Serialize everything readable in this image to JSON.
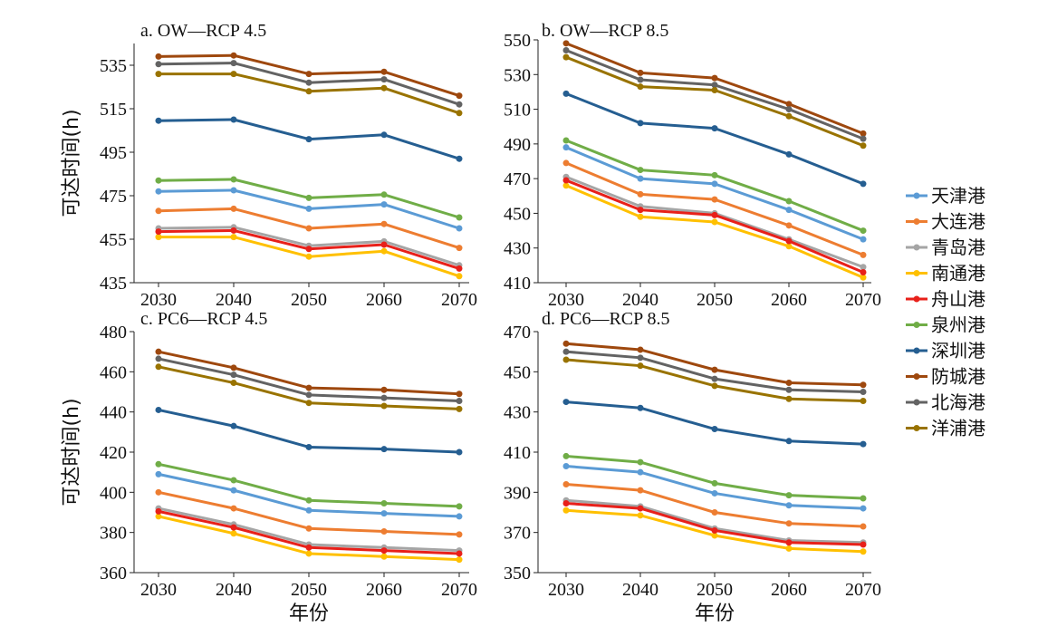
{
  "series_style": [
    {
      "name": "天津港",
      "color": "#5b9bd5"
    },
    {
      "name": "大连港",
      "color": "#ed7d31"
    },
    {
      "name": "青岛港",
      "color": "#a5a5a5"
    },
    {
      "name": "南通港",
      "color": "#ffc000"
    },
    {
      "name": "舟山港",
      "color": "#e8201a"
    },
    {
      "name": "泉州港",
      "color": "#70ad47"
    },
    {
      "name": "深圳港",
      "color": "#255e91"
    },
    {
      "name": "防城港",
      "color": "#9e480e"
    },
    {
      "name": "北海港",
      "color": "#636363"
    },
    {
      "name": "洋浦港",
      "color": "#997300"
    }
  ],
  "chart_data": [
    {
      "type": "line",
      "title": "a. OW—RCP 4.5",
      "xlabel": "",
      "ylabel": "可达时间(h)",
      "categories": [
        "2030",
        "2040",
        "2050",
        "2060",
        "2070"
      ],
      "ylim": [
        435,
        545
      ],
      "yticks": [
        435,
        455,
        475,
        495,
        515,
        535
      ],
      "series": [
        {
          "name": "天津港",
          "values": [
            477,
            477.5,
            469,
            471,
            460
          ]
        },
        {
          "name": "大连港",
          "values": [
            468,
            469,
            460,
            462,
            451
          ]
        },
        {
          "name": "青岛港",
          "values": [
            460,
            460.5,
            452,
            454,
            443
          ]
        },
        {
          "name": "南通港",
          "values": [
            456,
            456,
            447,
            449.5,
            438
          ]
        },
        {
          "name": "舟山港",
          "values": [
            458.5,
            459,
            450.5,
            452.5,
            441.5
          ]
        },
        {
          "name": "泉州港",
          "values": [
            482,
            482.5,
            474,
            475.5,
            465
          ]
        },
        {
          "name": "深圳港",
          "values": [
            509.5,
            510,
            501,
            503,
            492
          ]
        },
        {
          "name": "防城港",
          "values": [
            539,
            539.5,
            531,
            532,
            521
          ]
        },
        {
          "name": "北海港",
          "values": [
            535.5,
            536,
            527,
            528.5,
            517
          ]
        },
        {
          "name": "洋浦港",
          "values": [
            531,
            531,
            523,
            524.5,
            513
          ]
        }
      ]
    },
    {
      "type": "line",
      "title": "b. OW—RCP 8.5",
      "xlabel": "",
      "ylabel": "",
      "categories": [
        "2030",
        "2040",
        "2050",
        "2060",
        "2070"
      ],
      "ylim": [
        410,
        550
      ],
      "yticks": [
        410,
        430,
        450,
        470,
        490,
        510,
        530,
        550
      ],
      "series": [
        {
          "name": "天津港",
          "values": [
            488,
            470,
            467,
            452,
            435
          ]
        },
        {
          "name": "大连港",
          "values": [
            479,
            461,
            458,
            443,
            426
          ]
        },
        {
          "name": "青岛港",
          "values": [
            471,
            454,
            450,
            435,
            419
          ]
        },
        {
          "name": "南通港",
          "values": [
            466,
            448,
            445,
            431,
            413
          ]
        },
        {
          "name": "舟山港",
          "values": [
            469,
            452,
            449,
            434,
            416
          ]
        },
        {
          "name": "泉州港",
          "values": [
            492,
            475,
            472,
            457,
            440
          ]
        },
        {
          "name": "深圳港",
          "values": [
            519,
            502,
            499,
            484,
            467
          ]
        },
        {
          "name": "防城港",
          "values": [
            548,
            531,
            528,
            513,
            496
          ]
        },
        {
          "name": "北海港",
          "values": [
            544,
            527,
            524,
            510,
            493
          ]
        },
        {
          "name": "洋浦港",
          "values": [
            540,
            523,
            521,
            506,
            489
          ]
        }
      ]
    },
    {
      "type": "line",
      "title": "c. PC6—RCP 4.5",
      "xlabel": "年份",
      "ylabel": "可达时间(h)",
      "categories": [
        "2030",
        "2040",
        "2050",
        "2060",
        "2070"
      ],
      "ylim": [
        360,
        480
      ],
      "yticks": [
        360,
        380,
        400,
        420,
        440,
        460,
        480
      ],
      "series": [
        {
          "name": "天津港",
          "values": [
            409,
            401,
            391,
            389.5,
            388
          ]
        },
        {
          "name": "大连港",
          "values": [
            400,
            392,
            382,
            380.5,
            379
          ]
        },
        {
          "name": "青岛港",
          "values": [
            392,
            384,
            374,
            372.5,
            371
          ]
        },
        {
          "name": "南通港",
          "values": [
            388,
            379.5,
            369.5,
            368,
            366.5
          ]
        },
        {
          "name": "舟山港",
          "values": [
            390.5,
            382.5,
            372.5,
            371,
            369.5
          ]
        },
        {
          "name": "泉州港",
          "values": [
            414,
            406,
            396,
            394.5,
            393
          ]
        },
        {
          "name": "深圳港",
          "values": [
            441,
            433,
            422.5,
            421.5,
            420
          ]
        },
        {
          "name": "防城港",
          "values": [
            470,
            462,
            452,
            451,
            449
          ]
        },
        {
          "name": "北海港",
          "values": [
            466.5,
            458.5,
            448.5,
            447,
            445.5
          ]
        },
        {
          "name": "洋浦港",
          "values": [
            462.5,
            454.5,
            444.5,
            443,
            441.5
          ]
        }
      ]
    },
    {
      "type": "line",
      "title": "d. PC6—RCP 8.5",
      "xlabel": "年份",
      "ylabel": "",
      "categories": [
        "2030",
        "2040",
        "2050",
        "2060",
        "2070"
      ],
      "ylim": [
        350,
        470
      ],
      "yticks": [
        350,
        370,
        390,
        410,
        430,
        450,
        470
      ],
      "series": [
        {
          "name": "天津港",
          "values": [
            403,
            400,
            389.5,
            383.5,
            382
          ]
        },
        {
          "name": "大连港",
          "values": [
            394,
            391,
            380,
            374.5,
            373
          ]
        },
        {
          "name": "青岛港",
          "values": [
            386,
            383,
            372,
            366,
            365
          ]
        },
        {
          "name": "南通港",
          "values": [
            381,
            378.5,
            368.5,
            362,
            360.5
          ]
        },
        {
          "name": "舟山港",
          "values": [
            384.5,
            382,
            371,
            365,
            364
          ]
        },
        {
          "name": "泉州港",
          "values": [
            408,
            405,
            394.5,
            388.5,
            387
          ]
        },
        {
          "name": "深圳港",
          "values": [
            435,
            432,
            421.5,
            415.5,
            414
          ]
        },
        {
          "name": "防城港",
          "values": [
            464,
            461,
            451,
            444.5,
            443.5
          ]
        },
        {
          "name": "北海港",
          "values": [
            460,
            457,
            446.5,
            441,
            440
          ]
        },
        {
          "name": "洋浦港",
          "values": [
            456,
            453,
            443,
            436.5,
            435.5
          ]
        }
      ]
    }
  ]
}
